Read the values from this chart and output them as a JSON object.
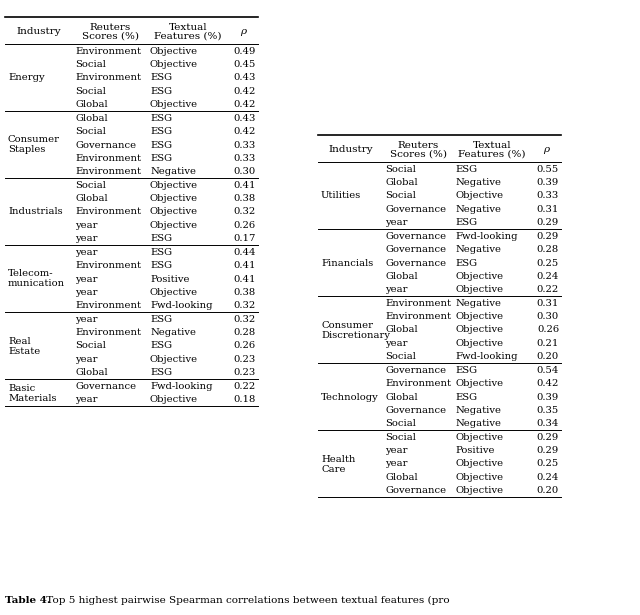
{
  "title_bold": "Table 4.",
  "title_rest": " Top 5 highest pairwise Spearman correlations between textual features (pro",
  "left_table": {
    "sections": [
      {
        "industry": [
          "Energy"
        ],
        "rows": [
          [
            "Environment",
            "Objective",
            "0.49"
          ],
          [
            "Social",
            "Objective",
            "0.45"
          ],
          [
            "Environment",
            "ESG",
            "0.43"
          ],
          [
            "Social",
            "ESG",
            "0.42"
          ],
          [
            "Global",
            "Objective",
            "0.42"
          ]
        ]
      },
      {
        "industry": [
          "Consumer",
          "Staples"
        ],
        "rows": [
          [
            "Global",
            "ESG",
            "0.43"
          ],
          [
            "Social",
            "ESG",
            "0.42"
          ],
          [
            "Governance",
            "ESG",
            "0.33"
          ],
          [
            "Environment",
            "ESG",
            "0.33"
          ],
          [
            "Environment",
            "Negative",
            "0.30"
          ]
        ]
      },
      {
        "industry": [
          "Industrials"
        ],
        "rows": [
          [
            "Social",
            "Objective",
            "0.41"
          ],
          [
            "Global",
            "Objective",
            "0.38"
          ],
          [
            "Environment",
            "Objective",
            "0.32"
          ],
          [
            "year",
            "Objective",
            "0.26"
          ],
          [
            "year",
            "ESG",
            "0.17"
          ]
        ]
      },
      {
        "industry": [
          "Telecom-",
          "munication"
        ],
        "rows": [
          [
            "year",
            "ESG",
            "0.44"
          ],
          [
            "Environment",
            "ESG",
            "0.41"
          ],
          [
            "year",
            "Positive",
            "0.41"
          ],
          [
            "year",
            "Objective",
            "0.38"
          ],
          [
            "Environment",
            "Fwd-looking",
            "0.32"
          ]
        ]
      },
      {
        "industry": [
          "Real",
          "Estate"
        ],
        "rows": [
          [
            "year",
            "ESG",
            "0.32"
          ],
          [
            "Environment",
            "Negative",
            "0.28"
          ],
          [
            "Social",
            "ESG",
            "0.26"
          ],
          [
            "year",
            "Objective",
            "0.23"
          ],
          [
            "Global",
            "ESG",
            "0.23"
          ]
        ]
      },
      {
        "industry": [
          "Basic",
          "Materials"
        ],
        "rows": [
          [
            "Governance",
            "Fwd-looking",
            "0.22"
          ],
          [
            "year",
            "Objective",
            "0.18"
          ]
        ]
      }
    ]
  },
  "right_table": {
    "sections": [
      {
        "industry": [
          "Utilities"
        ],
        "rows": [
          [
            "Social",
            "ESG",
            "0.55"
          ],
          [
            "Global",
            "Negative",
            "0.39"
          ],
          [
            "Social",
            "Objective",
            "0.33"
          ],
          [
            "Governance",
            "Negative",
            "0.31"
          ],
          [
            "year",
            "ESG",
            "0.29"
          ]
        ]
      },
      {
        "industry": [
          "Financials"
        ],
        "rows": [
          [
            "Governance",
            "Fwd-looking",
            "0.29"
          ],
          [
            "Governance",
            "Negative",
            "0.28"
          ],
          [
            "Governance",
            "ESG",
            "0.25"
          ],
          [
            "Global",
            "Objective",
            "0.24"
          ],
          [
            "year",
            "Objective",
            "0.22"
          ]
        ]
      },
      {
        "industry": [
          "Consumer",
          "Discretionary"
        ],
        "rows": [
          [
            "Environment",
            "Negative",
            "0.31"
          ],
          [
            "Environment",
            "Objective",
            "0.30"
          ],
          [
            "Global",
            "Objective",
            "0.26"
          ],
          [
            "year",
            "Objective",
            "0.21"
          ],
          [
            "Social",
            "Fwd-looking",
            "0.20"
          ]
        ]
      },
      {
        "industry": [
          "Technology"
        ],
        "rows": [
          [
            "Governance",
            "ESG",
            "0.54"
          ],
          [
            "Environment",
            "Objective",
            "0.42"
          ],
          [
            "Global",
            "ESG",
            "0.39"
          ],
          [
            "Governance",
            "Negative",
            "0.35"
          ],
          [
            "Social",
            "Negative",
            "0.34"
          ]
        ]
      },
      {
        "industry": [
          "Health",
          "Care"
        ],
        "rows": [
          [
            "Social",
            "Objective",
            "0.29"
          ],
          [
            "year",
            "Positive",
            "0.29"
          ],
          [
            "year",
            "Objective",
            "0.25"
          ],
          [
            "Global",
            "Objective",
            "0.24"
          ],
          [
            "Governance",
            "Objective",
            "0.20"
          ]
        ]
      }
    ]
  }
}
